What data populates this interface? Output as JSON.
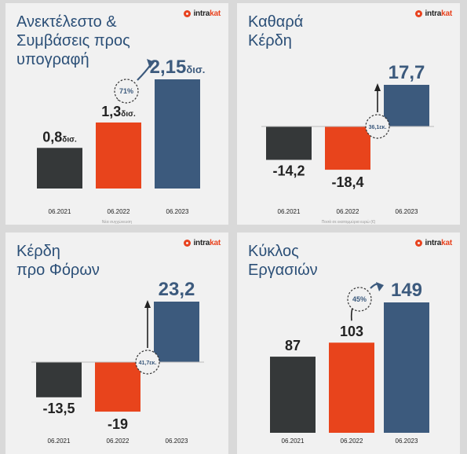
{
  "logo": {
    "a": "intra",
    "b": "kat"
  },
  "colors": {
    "dark": "#353839",
    "orange": "#e8441c",
    "blue": "#3c5a7d",
    "title": "#2b4f77"
  },
  "panels": [
    {
      "title": "Ανεκτέλεστο &\nΣυμβάσεις προς\nυπογραφή",
      "note": "Νέα συγχώνευση"
    },
    {
      "title": "Καθαρά\nΚέρδη",
      "note": "Ποσά σε εκατομμύρια ευρώ (€)"
    },
    {
      "title": "Κέρδη\nπρο Φόρων",
      "note": ""
    },
    {
      "title": "Κύκλος\nΕργασιών",
      "note": ""
    }
  ],
  "chart_data": [
    {
      "type": "bar",
      "categories": [
        "06.2021",
        "06.2022",
        "06.2023"
      ],
      "values": [
        0.8,
        1.3,
        2.15
      ],
      "labels": [
        [
          "0,8",
          "δισ."
        ],
        [
          "1,3",
          "δισ."
        ],
        [
          "2,15",
          "δισ."
        ]
      ],
      "change": "71%",
      "ylim": [
        0,
        2.15
      ]
    },
    {
      "type": "bar",
      "categories": [
        "06.2021",
        "06.2022",
        "06.2023"
      ],
      "values": [
        -14.2,
        -18.4,
        17.7
      ],
      "labels": [
        [
          "-14,2",
          ""
        ],
        [
          "-18,4",
          ""
        ],
        [
          "17,7",
          ""
        ]
      ],
      "change": "36,1εκ.",
      "ylim": [
        -18.4,
        17.7
      ]
    },
    {
      "type": "bar",
      "categories": [
        "06.2021",
        "06.2022",
        "06.2023"
      ],
      "values": [
        -13.5,
        -19,
        23.2
      ],
      "labels": [
        [
          "-13,5",
          ""
        ],
        [
          "-19",
          ""
        ],
        [
          "23,2",
          ""
        ]
      ],
      "change": "41,7εκ.",
      "ylim": [
        -19,
        23.2
      ]
    },
    {
      "type": "bar",
      "categories": [
        "06.2021",
        "06.2022",
        "06.2023"
      ],
      "values": [
        87,
        103,
        149
      ],
      "labels": [
        [
          "87",
          ""
        ],
        [
          "103",
          ""
        ],
        [
          "149",
          ""
        ]
      ],
      "change": "45%",
      "ylim": [
        0,
        149
      ]
    }
  ]
}
